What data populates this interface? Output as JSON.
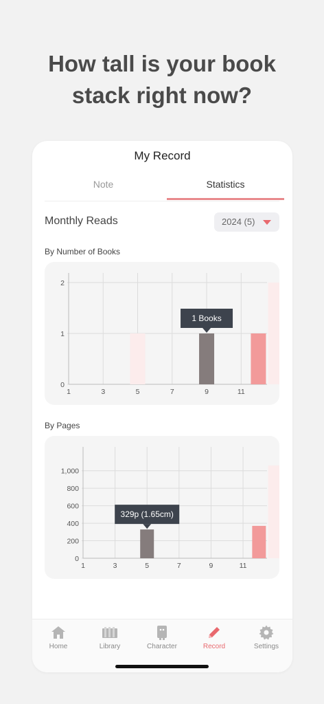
{
  "headline": {
    "line1": "How tall is your book",
    "line2": "stack right now?"
  },
  "app": {
    "title": "My Record",
    "tabs": [
      {
        "label": "Note",
        "active": false
      },
      {
        "label": "Statistics",
        "active": true
      }
    ],
    "monthly_title": "Monthly Reads",
    "year_select": "2024 (5)",
    "accent_color": "#e8898c"
  },
  "chart_data": [
    {
      "type": "bar",
      "title": "By Number of Books",
      "categories": [
        "1",
        "2",
        "3",
        "4",
        "5",
        "6",
        "7",
        "8",
        "9",
        "10",
        "11",
        "12"
      ],
      "x_tick_labels": [
        "1",
        "3",
        "5",
        "7",
        "9",
        "11"
      ],
      "y_tick_labels": [
        "0",
        "1",
        "2"
      ],
      "ylim": [
        0,
        2
      ],
      "values": [
        0,
        0,
        0,
        1,
        0,
        0,
        0,
        1,
        0,
        0,
        1,
        2
      ],
      "bar_styles": [
        "none",
        "none",
        "none",
        "faint",
        "none",
        "none",
        "none",
        "selected",
        "none",
        "none",
        "highlight",
        "faint"
      ],
      "tooltip": {
        "month": "8",
        "text": "1 Books"
      },
      "grid": true
    },
    {
      "type": "bar",
      "title": "By Pages",
      "categories": [
        "1",
        "2",
        "3",
        "4",
        "5",
        "6",
        "7",
        "8",
        "9",
        "10",
        "11",
        "12"
      ],
      "x_tick_labels": [
        "1",
        "3",
        "5",
        "7",
        "9",
        "11"
      ],
      "y_tick_labels": [
        "0",
        "200",
        "400",
        "600",
        "800",
        "1,000"
      ],
      "ylim": [
        0,
        1100
      ],
      "values": [
        0,
        0,
        0,
        329,
        0,
        0,
        0,
        0,
        0,
        0,
        370,
        1060
      ],
      "bar_styles": [
        "none",
        "none",
        "none",
        "selected",
        "none",
        "none",
        "none",
        "none",
        "none",
        "none",
        "highlight",
        "faint"
      ],
      "tooltip": {
        "month": "4",
        "text": "329p (1.65cm)"
      },
      "grid": true
    }
  ],
  "bottom_nav": [
    {
      "label": "Home",
      "icon": "home-icon",
      "active": false
    },
    {
      "label": "Library",
      "icon": "library-icon",
      "active": false
    },
    {
      "label": "Character",
      "icon": "character-icon",
      "active": false
    },
    {
      "label": "Record",
      "icon": "pencil-icon",
      "active": true
    },
    {
      "label": "Settings",
      "icon": "gear-icon",
      "active": false
    }
  ],
  "colors": {
    "selected_bar": "#857c7c",
    "highlight_bar": "#f29a9a",
    "faint_bar": "#fcecec",
    "tooltip_bg": "#3d434d",
    "nav_active": "#e8696e",
    "nav_inactive": "#b5b5b5"
  }
}
